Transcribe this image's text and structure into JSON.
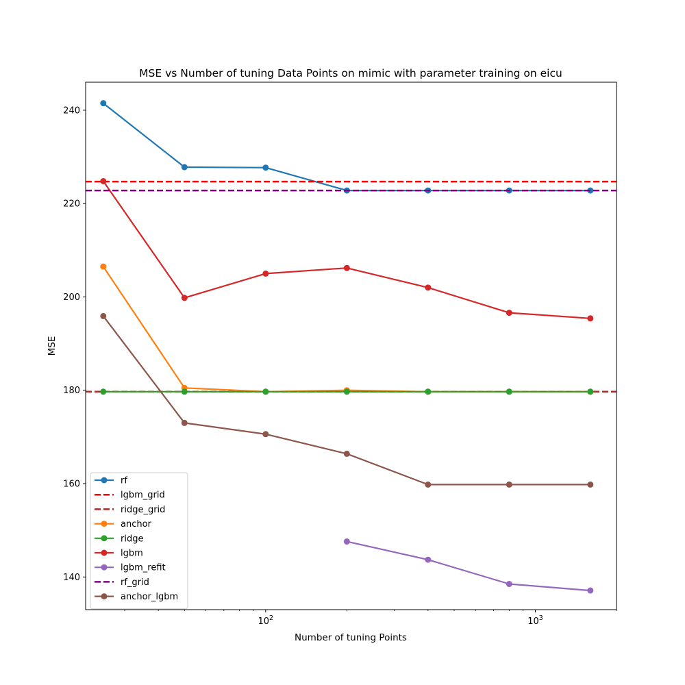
{
  "chart_data": {
    "type": "line",
    "title": "MSE vs Number of tuning Data Points on mimic with parameter training on eicu",
    "xlabel": "Number of tuning Points",
    "ylabel": "MSE",
    "xscale": "log",
    "xlim": [
      21.5,
      2000
    ],
    "ylim": [
      133,
      246
    ],
    "x_ticks": [
      {
        "value": 100,
        "base": "10",
        "exp": "2"
      },
      {
        "value": 1000,
        "base": "10",
        "exp": "3"
      }
    ],
    "y_ticks": [
      {
        "value": 140,
        "label": "140"
      },
      {
        "value": 160,
        "label": "160"
      },
      {
        "value": 180,
        "label": "180"
      },
      {
        "value": 200,
        "label": "200"
      },
      {
        "value": 220,
        "label": "220"
      },
      {
        "value": 240,
        "label": "240"
      }
    ],
    "grid": false,
    "legend_position": "lower-left",
    "series": [
      {
        "name": "rf",
        "kind": "line",
        "color": "#1f77b4",
        "x": [
          25,
          50,
          100,
          200,
          400,
          800,
          1600
        ],
        "values": [
          241.5,
          227.8,
          227.7,
          222.8,
          222.8,
          222.8,
          222.8
        ]
      },
      {
        "name": "lgbm_grid",
        "kind": "hline",
        "color": "#ff0000",
        "value": 224.7
      },
      {
        "name": "ridge_grid",
        "kind": "hline",
        "color": "#a52a2a",
        "value": 179.7
      },
      {
        "name": "anchor",
        "kind": "line",
        "color": "#ff7f0e",
        "x": [
          25,
          50,
          100,
          200,
          400,
          800,
          1600
        ],
        "values": [
          206.5,
          180.5,
          179.7,
          180.0,
          179.7,
          179.7,
          179.7
        ]
      },
      {
        "name": "ridge",
        "kind": "line",
        "color": "#2ca02c",
        "x": [
          25,
          50,
          100,
          200,
          400,
          800,
          1600
        ],
        "values": [
          179.7,
          179.7,
          179.7,
          179.7,
          179.7,
          179.7,
          179.7
        ]
      },
      {
        "name": "lgbm",
        "kind": "line",
        "color": "#d62728",
        "x": [
          25,
          50,
          100,
          200,
          400,
          800,
          1600
        ],
        "values": [
          224.8,
          199.8,
          205.0,
          206.2,
          202.0,
          196.6,
          195.4
        ]
      },
      {
        "name": "lgbm_refit",
        "kind": "line",
        "color": "#9467bd",
        "x": [
          200,
          400,
          800,
          1600
        ],
        "values": [
          147.6,
          143.7,
          138.5,
          137.1
        ]
      },
      {
        "name": "rf_grid",
        "kind": "hline",
        "color": "#800080",
        "value": 222.8
      },
      {
        "name": "anchor_lgbm",
        "kind": "line",
        "color": "#8c564b",
        "x": [
          25,
          50,
          100,
          200,
          400,
          800,
          1600
        ],
        "values": [
          195.9,
          173.0,
          170.6,
          166.4,
          159.8,
          159.8,
          159.8
        ]
      }
    ]
  }
}
